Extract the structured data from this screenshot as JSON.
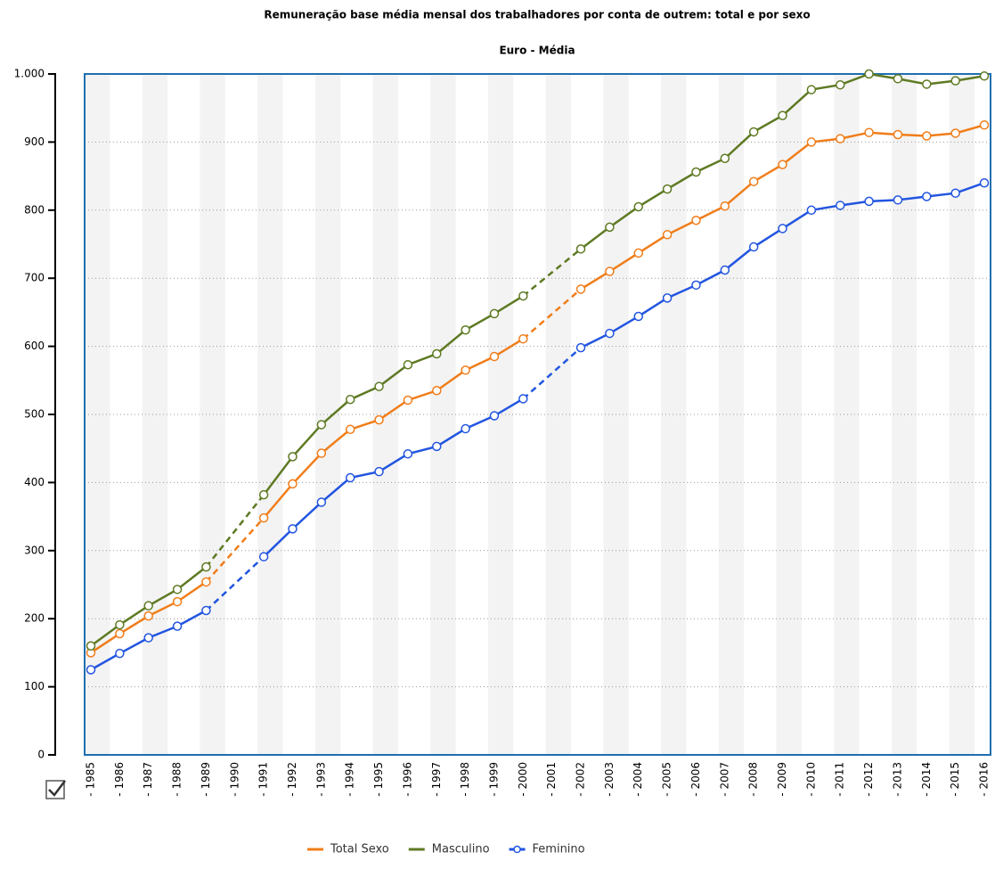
{
  "chart_data": {
    "type": "line",
    "title": "Remuneração base média mensal dos trabalhadores por conta de outrem: total e por sexo",
    "subtitle": "Euro - Média",
    "categories": [
      "- 1985",
      "- 1986",
      "- 1987",
      "- 1988",
      "- 1989",
      "- 1990",
      "- 1991",
      "- 1992",
      "- 1993",
      "- 1994",
      "- 1995",
      "- 1996",
      "- 1997",
      "- 1998",
      "- 1999",
      "- 2000",
      "- 2001",
      "- 2002",
      "- 2003",
      "- 2004",
      "- 2005",
      "- 2006",
      "- 2007",
      "- 2008",
      "- 2009",
      "- 2010",
      "- 2011",
      "- 2012",
      "- 2013",
      "- 2014",
      "- 2015",
      "- 2016"
    ],
    "series": [
      {
        "name": "Total Sexo",
        "color": "#f07d1a",
        "values": [
          150,
          178,
          204,
          225,
          254,
          null,
          348,
          398,
          443,
          478,
          492,
          521,
          535,
          565,
          585,
          611,
          null,
          684,
          710,
          737,
          764,
          785,
          806,
          842,
          867,
          900,
          905,
          914,
          911,
          909,
          913,
          925
        ]
      },
      {
        "name": "Masculino",
        "color": "#5e7a23",
        "values": [
          160,
          191,
          219,
          243,
          276,
          null,
          382,
          438,
          485,
          522,
          541,
          573,
          589,
          624,
          648,
          674,
          null,
          743,
          775,
          805,
          831,
          856,
          876,
          915,
          939,
          977,
          984,
          1000,
          993,
          985,
          990,
          997
        ]
      },
      {
        "name": "Feminino",
        "color": "#2255e0",
        "values": [
          125,
          149,
          172,
          189,
          212,
          null,
          291,
          332,
          371,
          407,
          416,
          442,
          453,
          479,
          498,
          523,
          null,
          598,
          619,
          644,
          671,
          690,
          712,
          746,
          773,
          800,
          807,
          813,
          815,
          820,
          825,
          840
        ]
      }
    ],
    "ylim": [
      0,
      1000
    ],
    "yticks": [
      0,
      100,
      200,
      300,
      400,
      500,
      600,
      700,
      800,
      900,
      {
        "value": 1000,
        "label": "1.000"
      }
    ],
    "grid": true
  }
}
